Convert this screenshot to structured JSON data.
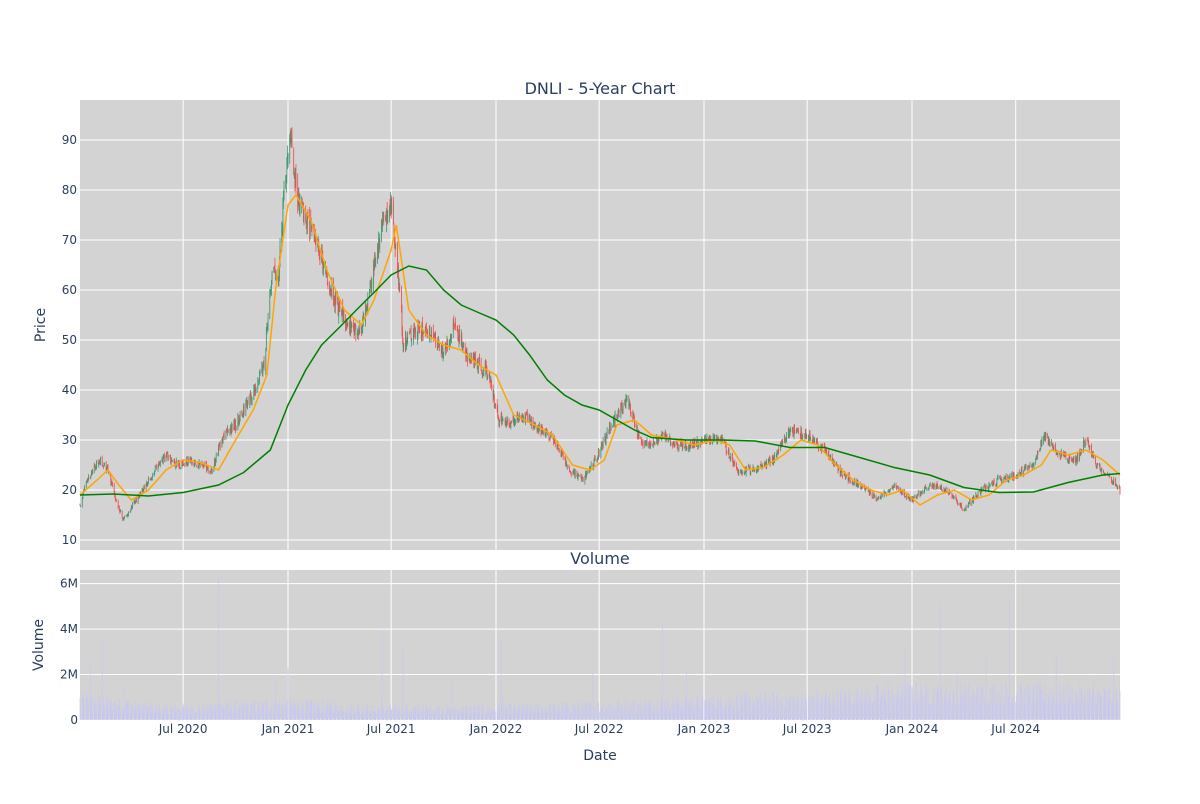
{
  "chart_data": [
    {
      "type": "candlestick",
      "title": "DNLI - 5-Year Chart",
      "xlabel": "",
      "ylabel": "Price",
      "ylim": [
        8,
        98
      ],
      "xlim": [
        "2020-01-02",
        "2024-12-31"
      ],
      "yticks": [
        10,
        20,
        30,
        40,
        50,
        60,
        70,
        80,
        90
      ],
      "grid": true,
      "background_color": "#d3d3d3",
      "up_color": "#3d9970",
      "down_color": "#ef5350",
      "series": [
        {
          "type": "candlestick",
          "close_anchors": [
            [
              "2020-01-02",
              17
            ],
            [
              "2020-01-15",
              22
            ],
            [
              "2020-02-05",
              26
            ],
            [
              "2020-02-20",
              24
            ],
            [
              "2020-03-05",
              18
            ],
            [
              "2020-03-18",
              14
            ],
            [
              "2020-04-10",
              18
            ],
            [
              "2020-05-01",
              22
            ],
            [
              "2020-06-01",
              27
            ],
            [
              "2020-06-20",
              25
            ],
            [
              "2020-07-10",
              26
            ],
            [
              "2020-08-01",
              25
            ],
            [
              "2020-08-20",
              24
            ],
            [
              "2020-09-10",
              31
            ],
            [
              "2020-10-01",
              33
            ],
            [
              "2020-10-20",
              37
            ],
            [
              "2020-11-05",
              40
            ],
            [
              "2020-11-20",
              45
            ],
            [
              "2020-12-05",
              65
            ],
            [
              "2020-12-15",
              62
            ],
            [
              "2020-12-25",
              78
            ],
            [
              "2021-01-05",
              90
            ],
            [
              "2021-01-15",
              80
            ],
            [
              "2021-02-01",
              74
            ],
            [
              "2021-02-20",
              70
            ],
            [
              "2021-03-10",
              62
            ],
            [
              "2021-04-01",
              56
            ],
            [
              "2021-04-20",
              52
            ],
            [
              "2021-05-10",
              52
            ],
            [
              "2021-06-01",
              65
            ],
            [
              "2021-06-15",
              73
            ],
            [
              "2021-07-01",
              76
            ],
            [
              "2021-07-15",
              62
            ],
            [
              "2021-07-22",
              50
            ],
            [
              "2021-08-20",
              52
            ],
            [
              "2021-09-10",
              52
            ],
            [
              "2021-10-01",
              47
            ],
            [
              "2021-10-20",
              53
            ],
            [
              "2021-11-10",
              47
            ],
            [
              "2021-12-01",
              45
            ],
            [
              "2021-12-20",
              43
            ],
            [
              "2022-01-05",
              34
            ],
            [
              "2022-01-25",
              33
            ],
            [
              "2022-02-20",
              35
            ],
            [
              "2022-03-20",
              32
            ],
            [
              "2022-04-15",
              30
            ],
            [
              "2022-05-10",
              24
            ],
            [
              "2022-06-01",
              22
            ],
            [
              "2022-06-20",
              25
            ],
            [
              "2022-07-10",
              30
            ],
            [
              "2022-08-01",
              35
            ],
            [
              "2022-08-20",
              38
            ],
            [
              "2022-09-10",
              30
            ],
            [
              "2022-10-01",
              29
            ],
            [
              "2022-10-20",
              31
            ],
            [
              "2022-11-15",
              29
            ],
            [
              "2022-12-10",
              29
            ],
            [
              "2023-01-10",
              30
            ],
            [
              "2023-02-01",
              30
            ],
            [
              "2023-03-01",
              24
            ],
            [
              "2023-04-01",
              24
            ],
            [
              "2023-05-01",
              26
            ],
            [
              "2023-06-01",
              32
            ],
            [
              "2023-07-01",
              31
            ],
            [
              "2023-08-01",
              28
            ],
            [
              "2023-09-01",
              23
            ],
            [
              "2023-10-01",
              21
            ],
            [
              "2023-11-01",
              18
            ],
            [
              "2023-12-01",
              21
            ],
            [
              "2024-01-01",
              18
            ],
            [
              "2024-02-01",
              21
            ],
            [
              "2024-03-01",
              20
            ],
            [
              "2024-04-01",
              16
            ],
            [
              "2024-05-01",
              20
            ],
            [
              "2024-06-01",
              22
            ],
            [
              "2024-07-01",
              23
            ],
            [
              "2024-08-01",
              25
            ],
            [
              "2024-08-20",
              31
            ],
            [
              "2024-09-15",
              27
            ],
            [
              "2024-10-15",
              26
            ],
            [
              "2024-11-01",
              30
            ],
            [
              "2024-11-20",
              25
            ],
            [
              "2024-12-10",
              23
            ],
            [
              "2024-12-31",
              20
            ]
          ]
        },
        {
          "type": "line",
          "color": "#ffa500",
          "points": [
            [
              "2020-01-02",
              19
            ],
            [
              "2020-02-01",
              22
            ],
            [
              "2020-02-20",
              24
            ],
            [
              "2020-03-10",
              21
            ],
            [
              "2020-04-01",
              18
            ],
            [
              "2020-05-01",
              20
            ],
            [
              "2020-06-01",
              24
            ],
            [
              "2020-07-01",
              26
            ],
            [
              "2020-08-01",
              25.5
            ],
            [
              "2020-09-01",
              24
            ],
            [
              "2020-10-01",
              30
            ],
            [
              "2020-11-01",
              36
            ],
            [
              "2020-11-25",
              43
            ],
            [
              "2020-12-10",
              60
            ],
            [
              "2021-01-01",
              77
            ],
            [
              "2021-01-15",
              79
            ],
            [
              "2021-02-10",
              74
            ],
            [
              "2021-03-10",
              64
            ],
            [
              "2021-04-10",
              56
            ],
            [
              "2021-05-10",
              53
            ],
            [
              "2021-06-01",
              58
            ],
            [
              "2021-07-01",
              68
            ],
            [
              "2021-07-10",
              73
            ],
            [
              "2021-08-01",
              56
            ],
            [
              "2021-09-01",
              51
            ],
            [
              "2021-10-01",
              49
            ],
            [
              "2021-11-01",
              48
            ],
            [
              "2021-12-01",
              45
            ],
            [
              "2022-01-01",
              43
            ],
            [
              "2022-02-01",
              35
            ],
            [
              "2022-03-10",
              33
            ],
            [
              "2022-04-10",
              31
            ],
            [
              "2022-05-15",
              25
            ],
            [
              "2022-06-15",
              24
            ],
            [
              "2022-07-10",
              26
            ],
            [
              "2022-08-01",
              33
            ],
            [
              "2022-09-01",
              34
            ],
            [
              "2022-10-01",
              31
            ],
            [
              "2022-11-15",
              30
            ],
            [
              "2022-12-15",
              29
            ],
            [
              "2023-01-20",
              30
            ],
            [
              "2023-02-15",
              29
            ],
            [
              "2023-03-15",
              24
            ],
            [
              "2023-04-15",
              24.5
            ],
            [
              "2023-05-20",
              27
            ],
            [
              "2023-06-20",
              30
            ],
            [
              "2023-07-20",
              29
            ],
            [
              "2023-08-20",
              25
            ],
            [
              "2023-09-20",
              22
            ],
            [
              "2023-10-20",
              20
            ],
            [
              "2023-11-20",
              19
            ],
            [
              "2023-12-15",
              20
            ],
            [
              "2024-01-15",
              17
            ],
            [
              "2024-02-15",
              19
            ],
            [
              "2024-03-15",
              20
            ],
            [
              "2024-04-15",
              18
            ],
            [
              "2024-05-15",
              19
            ],
            [
              "2024-06-15",
              22
            ],
            [
              "2024-07-15",
              23
            ],
            [
              "2024-08-15",
              25
            ],
            [
              "2024-09-01",
              28
            ],
            [
              "2024-10-01",
              27
            ],
            [
              "2024-11-01",
              28
            ],
            [
              "2024-12-01",
              26
            ],
            [
              "2024-12-31",
              23
            ]
          ]
        },
        {
          "type": "line",
          "color": "#008000",
          "points": [
            [
              "2020-01-02",
              19
            ],
            [
              "2020-03-01",
              19.2
            ],
            [
              "2020-05-01",
              18.8
            ],
            [
              "2020-07-01",
              19.5
            ],
            [
              "2020-09-01",
              21
            ],
            [
              "2020-10-15",
              23.5
            ],
            [
              "2020-12-01",
              28
            ],
            [
              "2021-01-01",
              37
            ],
            [
              "2021-02-01",
              44
            ],
            [
              "2021-03-01",
              49
            ],
            [
              "2021-04-01",
              52.5
            ],
            [
              "2021-05-01",
              56
            ],
            [
              "2021-06-01",
              59.5
            ],
            [
              "2021-07-01",
              63
            ],
            [
              "2021-08-01",
              64.8
            ],
            [
              "2021-09-01",
              64
            ],
            [
              "2021-10-01",
              60
            ],
            [
              "2021-11-01",
              57
            ],
            [
              "2021-12-01",
              55.5
            ],
            [
              "2022-01-01",
              54
            ],
            [
              "2022-02-01",
              51
            ],
            [
              "2022-03-01",
              47
            ],
            [
              "2022-04-01",
              42
            ],
            [
              "2022-05-01",
              39
            ],
            [
              "2022-06-01",
              37
            ],
            [
              "2022-07-01",
              36
            ],
            [
              "2022-08-01",
              34
            ],
            [
              "2022-09-01",
              32
            ],
            [
              "2022-10-01",
              30.5
            ],
            [
              "2022-12-01",
              30
            ],
            [
              "2023-02-01",
              30
            ],
            [
              "2023-04-01",
              29.8
            ],
            [
              "2023-06-01",
              28.5
            ],
            [
              "2023-08-01",
              28.5
            ],
            [
              "2023-10-01",
              26.5
            ],
            [
              "2023-12-01",
              24.5
            ],
            [
              "2024-02-01",
              23
            ],
            [
              "2024-04-01",
              20.5
            ],
            [
              "2024-06-01",
              19.5
            ],
            [
              "2024-08-01",
              19.6
            ],
            [
              "2024-10-01",
              21.5
            ],
            [
              "2024-12-01",
              23
            ],
            [
              "2024-12-31",
              23.3
            ]
          ]
        }
      ]
    },
    {
      "type": "bar",
      "title": "Volume",
      "xlabel": "Date",
      "ylabel": "Volume",
      "ylim": [
        0,
        6600000
      ],
      "yticks": [
        0,
        2000000,
        4000000,
        6000000
      ],
      "ytick_labels": [
        "0",
        "2M",
        "4M",
        "6M"
      ],
      "xticks": [
        "2020-07-01",
        "2021-01-01",
        "2021-07-01",
        "2022-01-01",
        "2022-07-01",
        "2023-01-01",
        "2023-07-01",
        "2024-01-01",
        "2024-07-01"
      ],
      "xtick_labels": [
        "Jul 2020",
        "Jan 2021",
        "Jul 2021",
        "Jan 2022",
        "Jul 2022",
        "Jan 2023",
        "Jul 2023",
        "Jan 2024",
        "Jul 2024"
      ],
      "grid": true,
      "background_color": "#d3d3d3",
      "bar_color": "#c8c8f0",
      "base_volume_anchors": [
        [
          "2020-01-02",
          900000
        ],
        [
          "2020-06-01",
          500000
        ],
        [
          "2021-01-01",
          700000
        ],
        [
          "2021-06-01",
          500000
        ],
        [
          "2022-01-01",
          500000
        ],
        [
          "2022-06-01",
          600000
        ],
        [
          "2023-01-01",
          800000
        ],
        [
          "2023-06-01",
          900000
        ],
        [
          "2024-01-01",
          1200000
        ],
        [
          "2024-06-01",
          1200000
        ],
        [
          "2024-12-31",
          1100000
        ]
      ],
      "volume_spikes": [
        [
          "2020-01-20",
          2600000
        ],
        [
          "2020-02-10",
          3500000
        ],
        [
          "2020-03-20",
          1400000
        ],
        [
          "2020-06-20",
          2300000
        ],
        [
          "2020-09-01",
          6300000
        ],
        [
          "2020-10-10",
          2100000
        ],
        [
          "2020-12-10",
          1700000
        ],
        [
          "2021-01-01",
          2300000
        ],
        [
          "2021-05-15",
          2700000
        ],
        [
          "2021-06-15",
          3900000
        ],
        [
          "2021-07-22",
          3200000
        ],
        [
          "2021-10-15",
          1700000
        ],
        [
          "2022-01-10",
          3500000
        ],
        [
          "2022-06-20",
          2100000
        ],
        [
          "2022-10-20",
          4200000
        ],
        [
          "2022-12-01",
          2100000
        ],
        [
          "2023-07-01",
          2000000
        ],
        [
          "2023-10-01",
          2000000
        ],
        [
          "2023-11-20",
          1900000
        ],
        [
          "2023-12-20",
          3100000
        ],
        [
          "2024-02-20",
          5100000
        ],
        [
          "2024-03-20",
          2100000
        ],
        [
          "2024-04-20",
          3000000
        ],
        [
          "2024-05-10",
          2800000
        ],
        [
          "2024-06-20",
          5300000
        ],
        [
          "2024-09-10",
          2800000
        ],
        [
          "2024-11-15",
          1800000
        ],
        [
          "2024-12-20",
          2800000
        ]
      ]
    }
  ]
}
